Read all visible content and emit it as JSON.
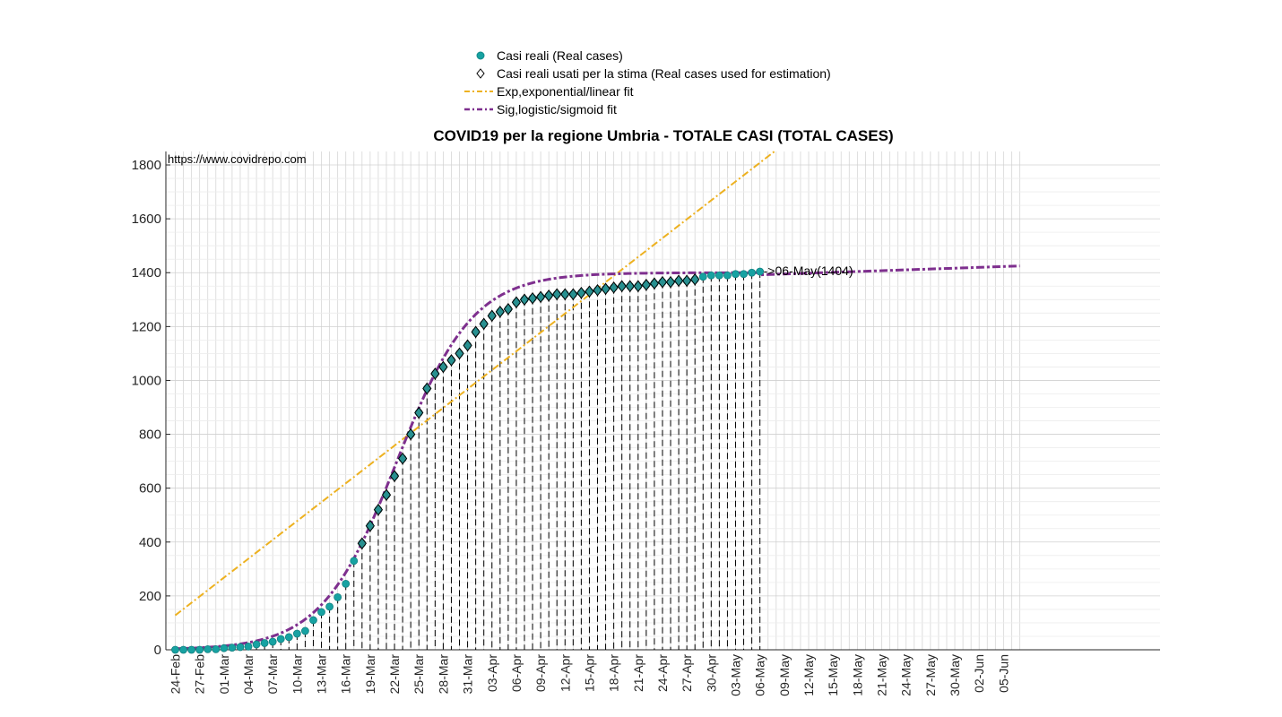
{
  "chart_data": {
    "type": "line",
    "title": "COVID19 per la regione Umbria - TOTALE CASI (TOTAL CASES)",
    "source": "https://www.covidrepo.com",
    "xlabel": "",
    "ylabel": "",
    "ylim": [
      0,
      1850
    ],
    "yticks": [
      0,
      200,
      400,
      600,
      800,
      1000,
      1200,
      1400,
      1600,
      1800
    ],
    "xlim_days": [
      0,
      104
    ],
    "x_tick_labels": [
      "24-Feb",
      "27-Feb",
      "01-Mar",
      "04-Mar",
      "07-Mar",
      "10-Mar",
      "13-Mar",
      "16-Mar",
      "19-Mar",
      "22-Mar",
      "25-Mar",
      "28-Mar",
      "31-Mar",
      "03-Apr",
      "06-Apr",
      "09-Apr",
      "12-Apr",
      "15-Apr",
      "18-Apr",
      "21-Apr",
      "24-Apr",
      "27-Apr",
      "30-Apr",
      "03-May",
      "06-May",
      "09-May",
      "12-May",
      "15-May",
      "18-May",
      "21-May",
      "24-May",
      "27-May",
      "30-May",
      "02-Jun",
      "05-Jun"
    ],
    "grid": true,
    "legend_position": "top-center",
    "annotation": {
      "text": "->06-May(1404)",
      "day": 72,
      "value": 1404
    },
    "series": [
      {
        "name": "Casi reali (Real cases)",
        "kind": "markers",
        "color": "#17a2a2",
        "start_date": "24-Feb",
        "values": [
          0,
          0,
          0,
          0,
          2,
          2,
          6,
          8,
          10,
          12,
          20,
          25,
          30,
          40,
          47,
          60,
          70,
          110,
          140,
          160,
          195,
          245,
          330,
          395,
          460,
          520,
          575,
          645,
          710,
          800,
          880,
          970,
          1025,
          1050,
          1075,
          1100,
          1130,
          1180,
          1210,
          1240,
          1255,
          1265,
          1290,
          1300,
          1305,
          1310,
          1315,
          1320,
          1320,
          1320,
          1325,
          1330,
          1335,
          1340,
          1345,
          1350,
          1350,
          1350,
          1355,
          1360,
          1365,
          1365,
          1370,
          1370,
          1375,
          1385,
          1390,
          1390,
          1390,
          1395,
          1395,
          1400,
          1404
        ]
      },
      {
        "name": "Casi reali usati per la stima (Real cases used for estimation)",
        "kind": "diamonds",
        "color": "#000000",
        "indices": [
          23,
          24,
          25,
          26,
          27,
          28,
          29,
          30,
          31,
          32,
          33,
          34,
          35,
          36,
          37,
          38,
          39,
          40,
          41,
          42,
          43,
          44,
          45,
          46,
          47,
          48,
          49,
          50,
          51,
          52,
          53,
          54,
          55,
          56,
          57,
          58,
          59,
          60,
          61,
          62,
          63,
          64
        ]
      },
      {
        "name": "Exp,exponential/linear fit",
        "kind": "line",
        "color": "#edb120",
        "points": [
          [
            0,
            128
          ],
          [
            74,
            1855
          ]
        ]
      },
      {
        "name": "Sig,logistic/sigmoid fit",
        "kind": "line",
        "color": "#7e2f8e",
        "logistic": {
          "L": 1400,
          "k": 0.215,
          "x0": 27.3
        },
        "tail": [
          [
            72,
            1392
          ],
          [
            104,
            1425
          ]
        ]
      }
    ]
  }
}
